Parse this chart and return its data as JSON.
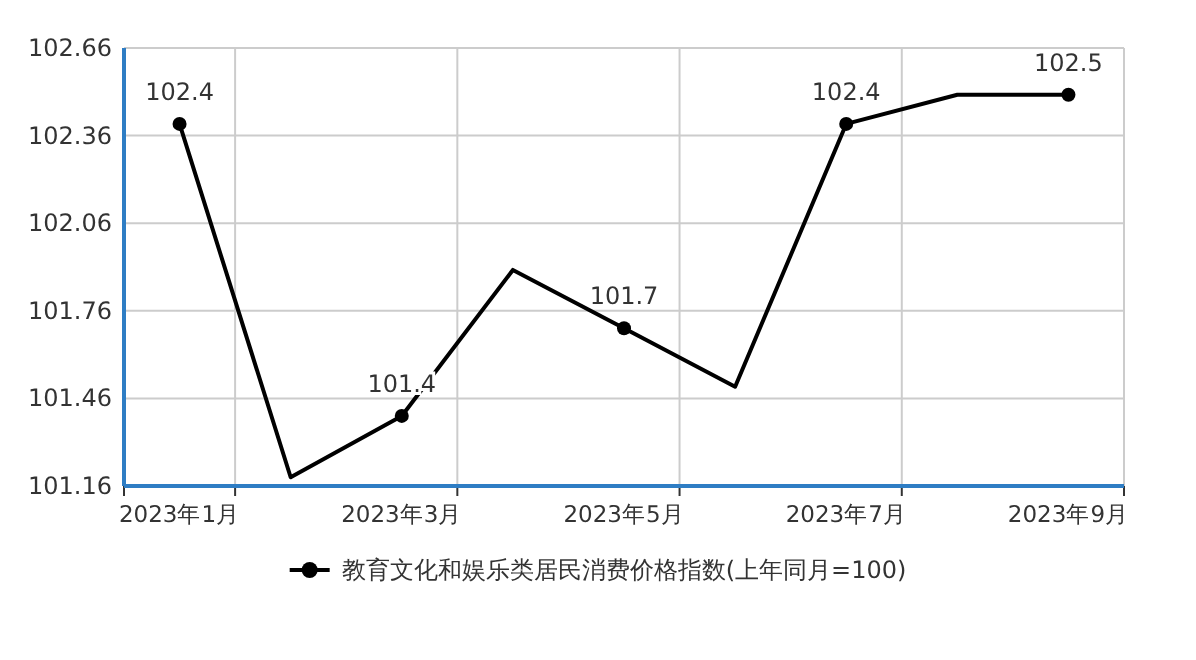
{
  "chart_data": {
    "type": "line",
    "categories": [
      "2023年1月",
      null,
      "2023年3月",
      null,
      "2023年5月",
      null,
      "2023年7月",
      null,
      "2023年9月"
    ],
    "series": [
      {
        "name": "教育文化和娱乐类居民消费价格指数(上年同月=100)",
        "color": "#000000",
        "values": [
          102.4,
          101.19,
          101.4,
          101.9,
          101.7,
          101.5,
          102.4,
          102.5,
          102.5
        ],
        "value_labels": [
          "102.4",
          null,
          "101.4",
          null,
          "101.7",
          null,
          "102.4",
          null,
          "102.5"
        ]
      }
    ],
    "ylim": [
      101.16,
      102.66
    ],
    "yticks": [
      101.16,
      101.46,
      101.76,
      102.06,
      102.36,
      102.66
    ],
    "grid": true,
    "legend": "bottom",
    "marker": "circle",
    "line_style": "solid"
  }
}
